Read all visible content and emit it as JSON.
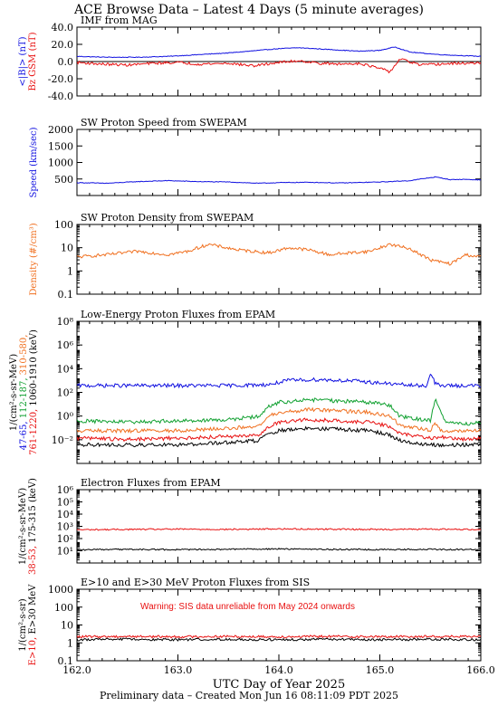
{
  "title": "ACE Browse Data – Latest 4 Days (5 minute averages)",
  "footer": "Preliminary data – Created Mon Jun 16 08:11:09 PDT 2025",
  "colors": {
    "blue": "#1010e0",
    "red": "#e81010",
    "orange": "#f07020",
    "green": "#10a030",
    "black": "#000000"
  },
  "chart_data": [
    {
      "type": "line",
      "title": "IMF from MAG",
      "xlim": [
        162.0,
        166.0
      ],
      "ylim": [
        -40,
        40
      ],
      "y_ticks": [
        "-40.0",
        "-20.0",
        "0.0",
        "20.0",
        "40.0"
      ],
      "ylabel_parts": [
        {
          "text": "<|B|> (nT)",
          "color": "blue"
        },
        {
          "text": "Bz GSM (nT)",
          "color": "red"
        }
      ],
      "series": [
        {
          "name": "<|B|>",
          "color": "blue",
          "x": [
            162.0,
            162.3,
            162.6,
            162.9,
            163.2,
            163.5,
            163.8,
            164.0,
            164.2,
            164.5,
            164.8,
            165.0,
            165.15,
            165.3,
            165.6,
            165.8,
            166.0
          ],
          "y": [
            6,
            5,
            5,
            6,
            8,
            10,
            13,
            15,
            16,
            14,
            12,
            13,
            17,
            11,
            8,
            7,
            6
          ]
        },
        {
          "name": "Bz GSM",
          "color": "red",
          "x": [
            162.0,
            162.25,
            162.5,
            162.75,
            163.0,
            163.2,
            163.5,
            163.75,
            164.0,
            164.2,
            164.4,
            164.6,
            164.8,
            165.0,
            165.1,
            165.2,
            165.4,
            165.6,
            165.8,
            166.0
          ],
          "y": [
            -1,
            -3,
            -4,
            -2,
            -1,
            -3,
            -2,
            -5,
            -1,
            1,
            -2,
            -3,
            -2,
            -8,
            -12,
            3,
            -4,
            -3,
            -2,
            -2
          ]
        }
      ]
    },
    {
      "type": "line",
      "title": "SW Proton Speed from SWEPAM",
      "xlim": [
        162.0,
        166.0
      ],
      "ylim": [
        0,
        2000
      ],
      "y_ticks": [
        "500",
        "1000",
        "1500",
        "2000"
      ],
      "ylabel_parts": [
        {
          "text": "Speed (km/sec)",
          "color": "blue"
        }
      ],
      "series": [
        {
          "name": "Speed",
          "color": "blue",
          "x": [
            162.0,
            162.3,
            162.6,
            162.9,
            163.2,
            163.5,
            163.8,
            164.0,
            164.3,
            164.6,
            164.9,
            165.1,
            165.3,
            165.45,
            165.55,
            165.7,
            165.85,
            166.0
          ],
          "y": [
            390,
            370,
            420,
            450,
            420,
            410,
            370,
            390,
            400,
            380,
            400,
            420,
            450,
            520,
            560,
            480,
            490,
            470
          ]
        }
      ]
    },
    {
      "type": "line",
      "title": "SW Proton Density from SWEPAM",
      "xlim": [
        162.0,
        166.0
      ],
      "ylim": [
        0.1,
        100
      ],
      "yscale": "log",
      "y_ticks": [
        "0.1",
        "1",
        "10",
        "100"
      ],
      "ylabel_parts": [
        {
          "text": "Density (#/cm³)",
          "color": "orange"
        }
      ],
      "series": [
        {
          "name": "Density",
          "color": "orange",
          "x": [
            162.0,
            162.3,
            162.6,
            162.9,
            163.1,
            163.3,
            163.6,
            163.9,
            164.1,
            164.3,
            164.5,
            164.7,
            164.9,
            165.1,
            165.3,
            165.5,
            165.7,
            165.85,
            166.0
          ],
          "y": [
            4,
            5,
            7,
            5,
            7,
            14,
            8,
            6,
            10,
            8,
            5,
            6,
            7,
            14,
            9,
            3,
            2,
            5,
            4
          ]
        }
      ]
    },
    {
      "type": "line",
      "title": "Low-Energy Proton Fluxes from EPAM",
      "xlim": [
        162.0,
        166.0
      ],
      "ylim": [
        0.01,
        100000000
      ],
      "yscale": "log",
      "y_ticks": [
        "10⁻²",
        "10⁰",
        "10²",
        "10⁴",
        "10⁶",
        "10⁸"
      ],
      "ylabel_parts": [
        {
          "text": "1/(cm²-s-sr-MeV)",
          "color": "black"
        },
        {
          "text": "47-65,",
          "color": "blue"
        },
        {
          "text": "112-187,",
          "color": "green"
        },
        {
          "text": "310-580,",
          "color": "orange"
        },
        {
          "text": "761-1220,",
          "color": "red"
        },
        {
          "text": "1060-1910 (keV)",
          "color": "black"
        }
      ],
      "series": [
        {
          "name": "47-65",
          "color": "blue",
          "x": [
            162.0,
            162.5,
            163.0,
            163.5,
            163.9,
            164.1,
            164.4,
            164.8,
            165.1,
            165.35,
            165.47,
            165.5,
            165.55,
            165.6,
            165.8,
            166.0
          ],
          "y": [
            3000,
            3000,
            3000,
            3000,
            3500,
            7000,
            8000,
            6000,
            4000,
            3000,
            3000,
            25000,
            4000,
            3000,
            3000,
            3000
          ]
        },
        {
          "name": "112-187",
          "color": "green",
          "x": [
            162.0,
            162.5,
            163.0,
            163.5,
            163.8,
            163.9,
            164.0,
            164.3,
            164.6,
            164.9,
            165.1,
            165.2,
            165.5,
            165.55,
            165.6,
            165.65,
            165.8,
            166.0
          ],
          "y": [
            10,
            8,
            10,
            12,
            20,
            100,
            200,
            300,
            250,
            200,
            120,
            20,
            10,
            400,
            60,
            8,
            6,
            7
          ]
        },
        {
          "name": "310-580",
          "color": "orange",
          "x": [
            162.0,
            162.5,
            163.0,
            163.5,
            163.8,
            163.9,
            164.0,
            164.3,
            164.6,
            164.9,
            165.1,
            165.2,
            165.5,
            165.55,
            165.6,
            165.8,
            166.0
          ],
          "y": [
            2,
            2,
            2,
            3,
            4,
            20,
            40,
            60,
            50,
            40,
            20,
            5,
            2,
            8,
            2,
            2,
            2
          ]
        },
        {
          "name": "761-1220",
          "color": "red",
          "x": [
            162.0,
            162.5,
            163.0,
            163.5,
            163.8,
            163.9,
            164.0,
            164.3,
            164.6,
            164.9,
            165.1,
            165.2,
            165.5,
            165.6,
            165.8,
            166.0
          ],
          "y": [
            0.6,
            0.5,
            0.6,
            0.8,
            1,
            4,
            8,
            12,
            10,
            8,
            4,
            1.2,
            0.6,
            0.7,
            0.5,
            0.6
          ]
        },
        {
          "name": "1060-1910",
          "color": "black",
          "x": [
            162.0,
            162.5,
            163.0,
            163.5,
            163.8,
            163.9,
            164.0,
            164.3,
            164.6,
            164.9,
            165.1,
            165.2,
            165.5,
            165.6,
            165.8,
            166.0
          ],
          "y": [
            0.2,
            0.2,
            0.2,
            0.3,
            0.4,
            1.2,
            2,
            3,
            2.5,
            2,
            1,
            0.4,
            0.2,
            0.2,
            0.2,
            0.2
          ]
        }
      ]
    },
    {
      "type": "line",
      "title": "Electron Fluxes from EPAM",
      "xlim": [
        162.0,
        166.0
      ],
      "ylim": [
        1,
        10000000
      ],
      "yscale": "log",
      "y_ticks": [
        "10¹",
        "10²",
        "10³",
        "10⁴",
        "10⁵",
        "10⁶"
      ],
      "ylabel_parts": [
        {
          "text": "1/(cm²-s-sr-MeV)",
          "color": "black"
        },
        {
          "text": "38-53,",
          "color": "red"
        },
        {
          "text": "175-315 (keV)",
          "color": "black"
        }
      ],
      "series": [
        {
          "name": "38-53",
          "color": "red",
          "x": [
            162.0,
            162.5,
            163.0,
            163.5,
            164.0,
            164.5,
            165.0,
            165.5,
            166.0
          ],
          "y": [
            1500,
            1600,
            1700,
            1600,
            1800,
            1700,
            1600,
            1700,
            1600
          ]
        },
        {
          "name": "175-315",
          "color": "black",
          "x": [
            162.0,
            162.5,
            163.0,
            163.5,
            164.0,
            164.5,
            165.0,
            165.5,
            166.0
          ],
          "y": [
            18,
            20,
            19,
            20,
            22,
            20,
            19,
            20,
            19
          ]
        }
      ]
    },
    {
      "type": "line",
      "title": "E>10 and E>30 MeV Proton Fluxes from SIS",
      "xlim": [
        162.0,
        166.0
      ],
      "ylim": [
        0.1,
        1000
      ],
      "yscale": "log",
      "y_ticks": [
        "0.1",
        "1",
        "10",
        "100",
        "1000"
      ],
      "x_ticks": [
        "162.0",
        "163.0",
        "164.0",
        "165.0",
        "166.0"
      ],
      "xlabel": "UTC Day of Year 2025",
      "annotation": "Warning: SIS data unreliable from May 2024 onwards",
      "ylabel_parts": [
        {
          "text": "1/(cm²-s-sr)",
          "color": "black"
        },
        {
          "text": "E>10,",
          "color": "red"
        },
        {
          "text": "E>30 MeV",
          "color": "black"
        }
      ],
      "series": [
        {
          "name": "E>10",
          "color": "red",
          "x": [
            162.0,
            162.5,
            163.0,
            163.5,
            164.0,
            164.5,
            165.0,
            165.5,
            166.0
          ],
          "y": [
            2.2,
            2.3,
            2.2,
            2.3,
            2.2,
            2.3,
            2.2,
            2.3,
            2.2
          ]
        },
        {
          "name": "E>30",
          "color": "black",
          "x": [
            162.0,
            162.5,
            163.0,
            163.5,
            164.0,
            164.5,
            165.0,
            165.5,
            166.0
          ],
          "y": [
            1.5,
            1.6,
            1.5,
            1.6,
            1.5,
            1.6,
            1.5,
            1.6,
            1.5
          ]
        }
      ]
    }
  ]
}
